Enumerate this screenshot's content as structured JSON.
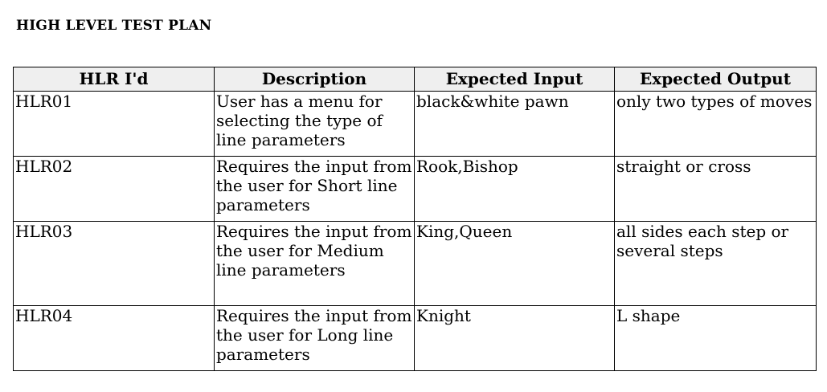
{
  "document": {
    "title": "HIGH LEVEL TEST PLAN"
  },
  "table": {
    "headers": [
      "HLR I'd",
      "Description",
      "Expected Input",
      "Expected Output"
    ],
    "rows": [
      {
        "id": "HLR01",
        "description": "User has a menu for selecting the type of line parameters",
        "input": "black&white pawn",
        "output": "only two types of moves"
      },
      {
        "id": "HLR02",
        "description": "Requires the input from the user for Short line parameters",
        "input": "Rook,Bishop",
        "output": "straight or cross"
      },
      {
        "id": "HLR03",
        "description": "Requires the input from the user for Medium line parameters",
        "input": "King,Queen",
        "output": "all sides each step or several steps"
      },
      {
        "id": "HLR04",
        "description": "Requires the input from the user for Long line parameters",
        "input": "Knight",
        "output": "L shape"
      }
    ]
  }
}
